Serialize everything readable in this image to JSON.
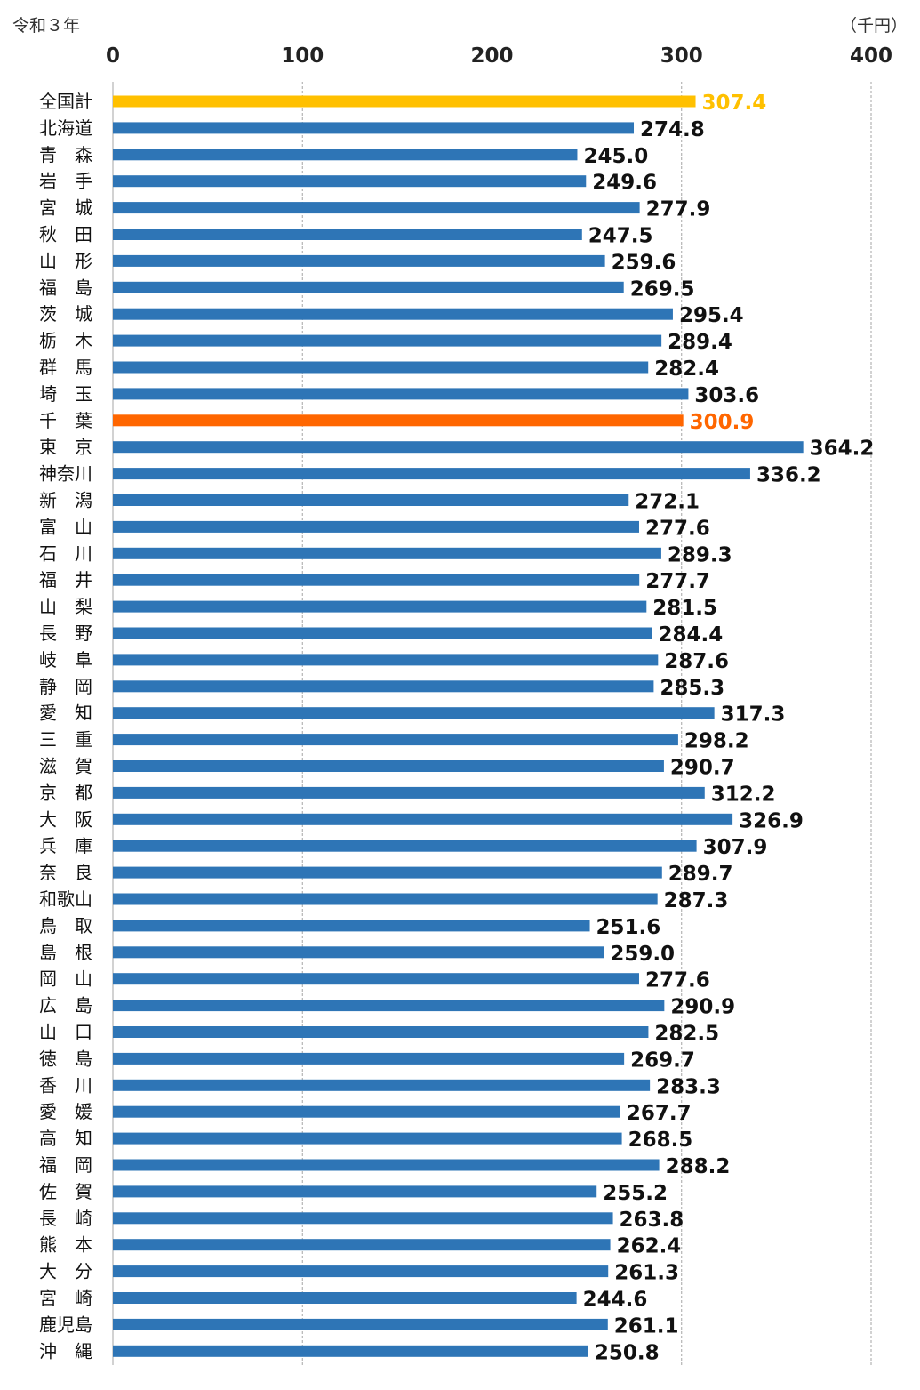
{
  "chart_data": {
    "type": "bar",
    "orientation": "horizontal",
    "title": "",
    "era_label": "令和３年",
    "unit_label": "（千円）",
    "x_ticks": [
      0,
      100,
      200,
      300,
      400
    ],
    "xlim": [
      0,
      400
    ],
    "grid": true,
    "categories": [
      "全国計",
      "北海道",
      "青　森",
      "岩　手",
      "宮　城",
      "秋　田",
      "山　形",
      "福　島",
      "茨　城",
      "栃　木",
      "群　馬",
      "埼　玉",
      "千　葉",
      "東　京",
      "神奈川",
      "新　潟",
      "富　山",
      "石　川",
      "福　井",
      "山　梨",
      "長　野",
      "岐　阜",
      "静　岡",
      "愛　知",
      "三　重",
      "滋　賀",
      "京　都",
      "大　阪",
      "兵　庫",
      "奈　良",
      "和歌山",
      "鳥　取",
      "島　根",
      "岡　山",
      "広　島",
      "山　口",
      "徳　島",
      "香　川",
      "愛　媛",
      "高　知",
      "福　岡",
      "佐　賀",
      "長　崎",
      "熊　本",
      "大　分",
      "宮　崎",
      "鹿児島",
      "沖　縄"
    ],
    "values": [
      307.4,
      274.8,
      245.0,
      249.6,
      277.9,
      247.5,
      259.6,
      269.5,
      295.4,
      289.4,
      282.4,
      303.6,
      300.9,
      364.2,
      336.2,
      272.1,
      277.6,
      289.3,
      277.7,
      281.5,
      284.4,
      287.6,
      285.3,
      317.3,
      298.2,
      290.7,
      312.2,
      326.9,
      307.9,
      289.7,
      287.3,
      251.6,
      259.0,
      277.6,
      290.9,
      282.5,
      269.7,
      283.3,
      267.7,
      268.5,
      288.2,
      255.2,
      263.8,
      262.4,
      261.3,
      244.6,
      261.1,
      250.8
    ],
    "labels": [
      "307.4",
      "274.8",
      "245.0",
      "249.6",
      "277.9",
      "247.5",
      "259.6",
      "269.5",
      "295.4",
      "289.4",
      "282.4",
      "303.6",
      "300.9",
      "364.2",
      "336.2",
      "272.1",
      "277.6",
      "289.3",
      "277.7",
      "281.5",
      "284.4",
      "287.6",
      "285.3",
      "317.3",
      "298.2",
      "290.7",
      "312.2",
      "326.9",
      "307.9",
      "289.7",
      "287.3",
      "251.6",
      "259.0",
      "277.6",
      "290.9",
      "282.5",
      "269.7",
      "283.3",
      "267.7",
      "268.5",
      "288.2",
      "255.2",
      "263.8",
      "262.4",
      "261.3",
      "244.6",
      "261.1",
      "250.8"
    ],
    "colors": {
      "default": "#2E75B6",
      "national": "#FFC000",
      "chiba": "#FF6600"
    },
    "highlights": {
      "全国計": "national",
      "千　葉": "chiba"
    }
  }
}
